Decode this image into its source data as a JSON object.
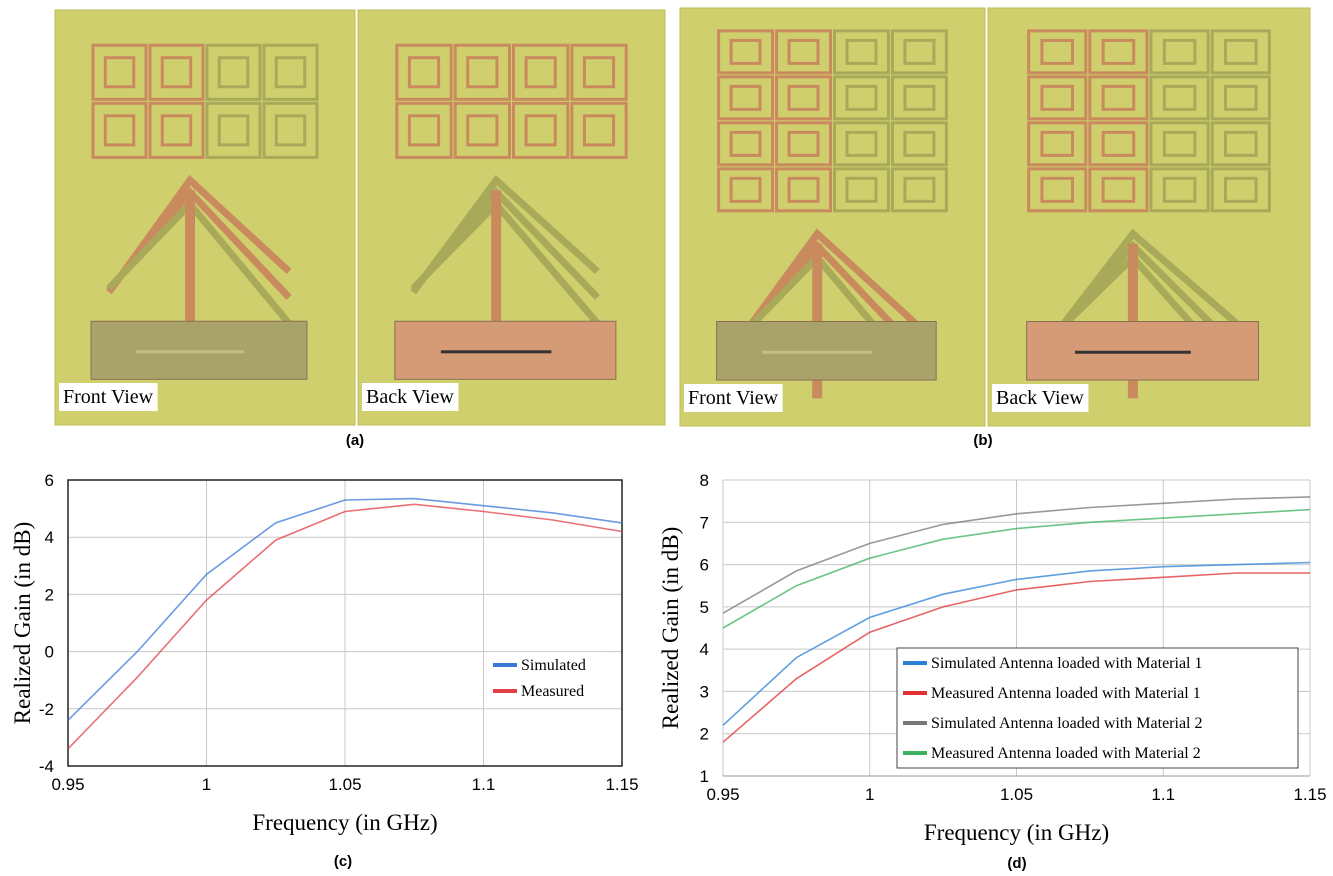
{
  "photos": [
    {
      "labels": [
        "Front View",
        "Back View"
      ],
      "caption": "(a)"
    },
    {
      "labels": [
        "Front View",
        "Back View"
      ],
      "caption": "(b)"
    }
  ],
  "chart_data": [
    {
      "type": "line",
      "caption": "(c)",
      "xlabel": "Frequency (in GHz)",
      "ylabel": "Realized Gain (in dB)",
      "x": [
        0.95,
        0.975,
        1,
        1.025,
        1.05,
        1.075,
        1.1,
        1.125,
        1.15
      ],
      "series": [
        {
          "name": "Simulated",
          "color": "#3a78d8",
          "values": [
            -2.4,
            0,
            2.7,
            4.5,
            5.3,
            5.35,
            5.1,
            4.85,
            4.5
          ]
        },
        {
          "name": "Measured",
          "color": "#e04048",
          "values": [
            -3.4,
            -0.9,
            1.8,
            3.9,
            4.9,
            5.15,
            4.9,
            4.6,
            4.2
          ]
        }
      ],
      "xlim": [
        0.95,
        1.15
      ],
      "xticks": [
        0.95,
        1,
        1.05,
        1.1,
        1.15
      ],
      "ylim": [
        -4,
        6
      ],
      "yticks": [
        -4,
        -2,
        0,
        2,
        4,
        6
      ],
      "grid": true,
      "legend": "center right"
    },
    {
      "type": "line",
      "caption": "(d)",
      "xlabel": "Frequency (in GHz)",
      "ylabel": "Realized Gain (in dB)",
      "x": [
        0.95,
        0.975,
        1,
        1.025,
        1.05,
        1.075,
        1.1,
        1.125,
        1.15
      ],
      "series": [
        {
          "name": "Simulated Antenna loaded with Material 1",
          "color": "#2a7fd4",
          "values": [
            2.2,
            3.8,
            4.75,
            5.3,
            5.65,
            5.85,
            5.95,
            6.0,
            6.05
          ]
        },
        {
          "name": "Measured Antenna loaded with Material 1",
          "color": "#e03030",
          "values": [
            1.8,
            3.3,
            4.4,
            5.0,
            5.4,
            5.6,
            5.7,
            5.8,
            5.8
          ]
        },
        {
          "name": "Simulated Antenna loaded with Material 2",
          "color": "#777777",
          "values": [
            4.85,
            5.85,
            6.5,
            6.95,
            7.2,
            7.35,
            7.45,
            7.55,
            7.6
          ]
        },
        {
          "name": "Measured Antenna loaded with Material 2",
          "color": "#3cb060",
          "values": [
            4.5,
            5.5,
            6.15,
            6.6,
            6.85,
            7.0,
            7.1,
            7.2,
            7.3
          ]
        }
      ],
      "xlim": [
        0.95,
        1.15
      ],
      "xticks": [
        0.95,
        1,
        1.05,
        1.1,
        1.15
      ],
      "ylim": [
        1,
        8
      ],
      "yticks": [
        1,
        2,
        3,
        4,
        5,
        6,
        7,
        8
      ],
      "grid": true,
      "legend": "lower right"
    }
  ]
}
